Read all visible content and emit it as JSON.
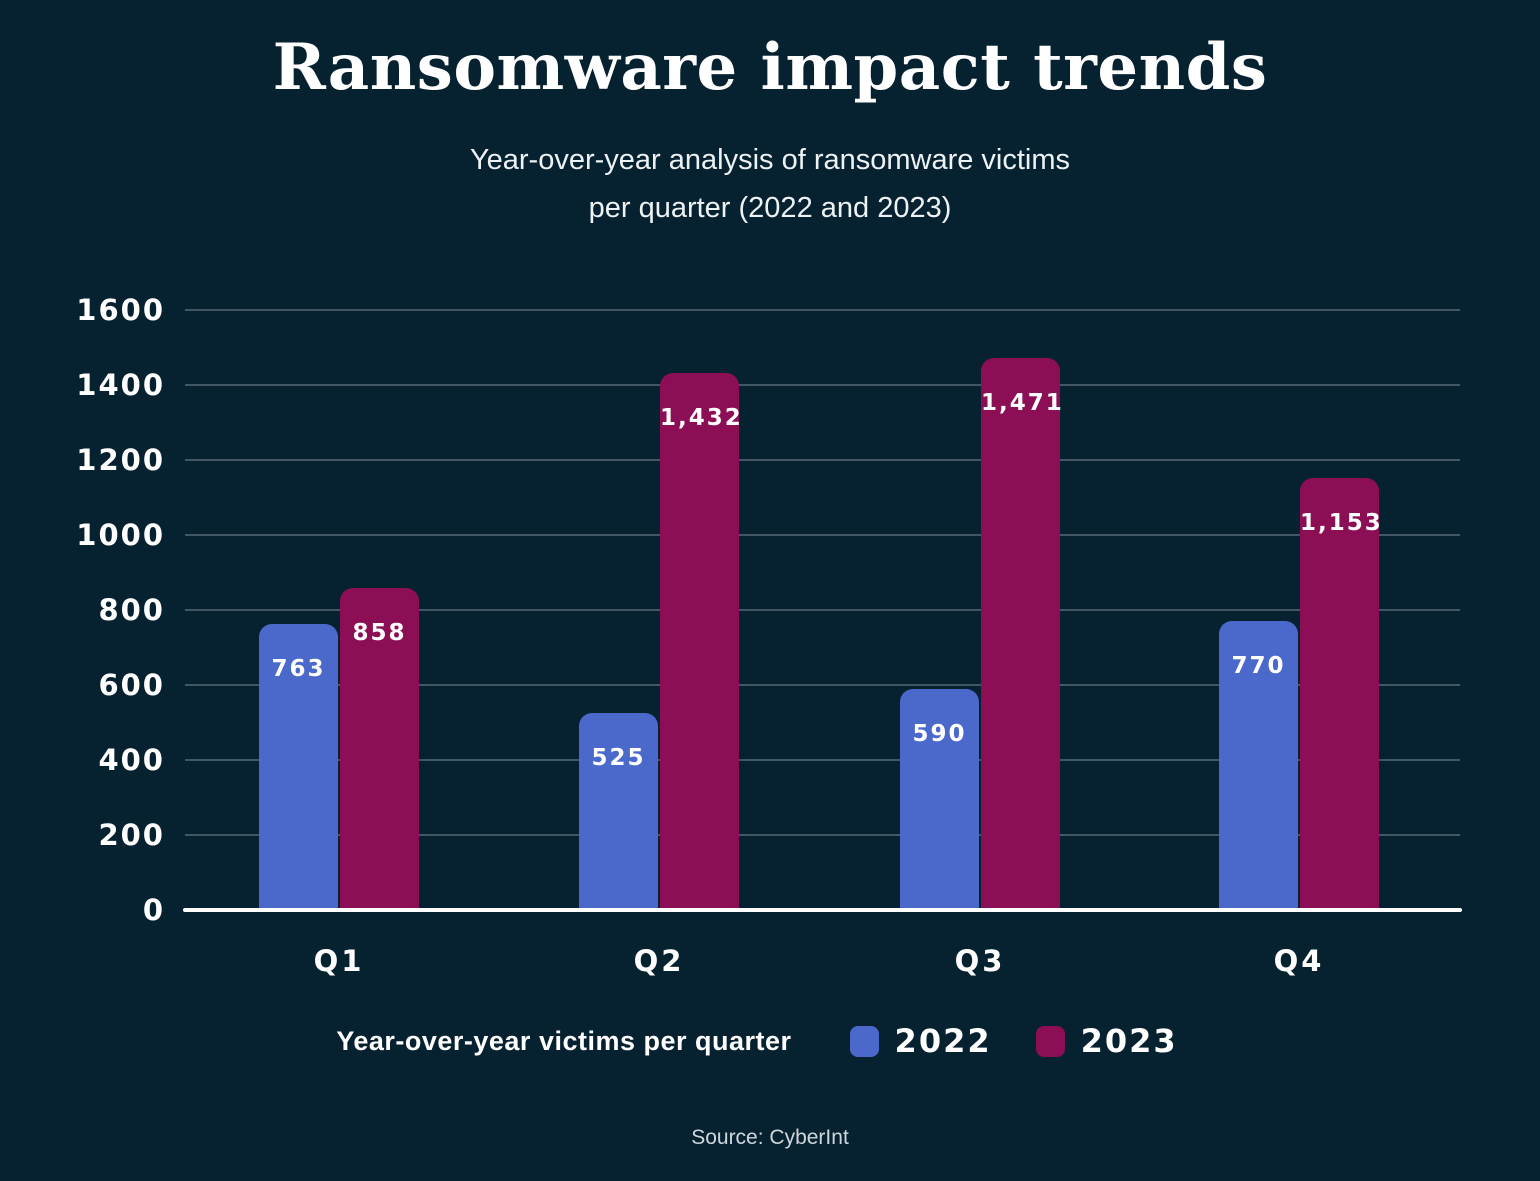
{
  "title": "Ransomware impact trends",
  "subtitle_line1": "Year-over-year analysis of ransomware victims",
  "subtitle_line2": "per quarter (2022 and 2023)",
  "source": "Source: CyberInt",
  "legend": {
    "label": "Year-over-year victims per quarter",
    "series": [
      {
        "name": "2022",
        "color": "#4a69cb"
      },
      {
        "name": "2023",
        "color": "#8c0f56"
      }
    ]
  },
  "chart_data": {
    "type": "bar",
    "categories": [
      "Q1",
      "Q2",
      "Q3",
      "Q4"
    ],
    "series": [
      {
        "name": "2022",
        "color": "#4a69cb",
        "values": [
          763,
          525,
          590,
          770
        ]
      },
      {
        "name": "2023",
        "color": "#8c0f56",
        "values": [
          858,
          1432,
          1471,
          1153
        ]
      }
    ],
    "title": "Ransomware impact trends",
    "xlabel": "",
    "ylabel": "",
    "ylim": [
      0,
      1600
    ],
    "yticks": [
      0,
      200,
      400,
      600,
      800,
      1000,
      1200,
      1400,
      1600
    ],
    "grid": true,
    "legend_position": "bottom",
    "value_labels": "inside-top",
    "value_label_format": "thousands-comma"
  },
  "colors": {
    "background": "#062130",
    "grid": "#435663",
    "axis": "#ffffff",
    "text": "#ffffff",
    "subtitle_text": "#edf2f4",
    "source_text": "#cdd7dc"
  }
}
